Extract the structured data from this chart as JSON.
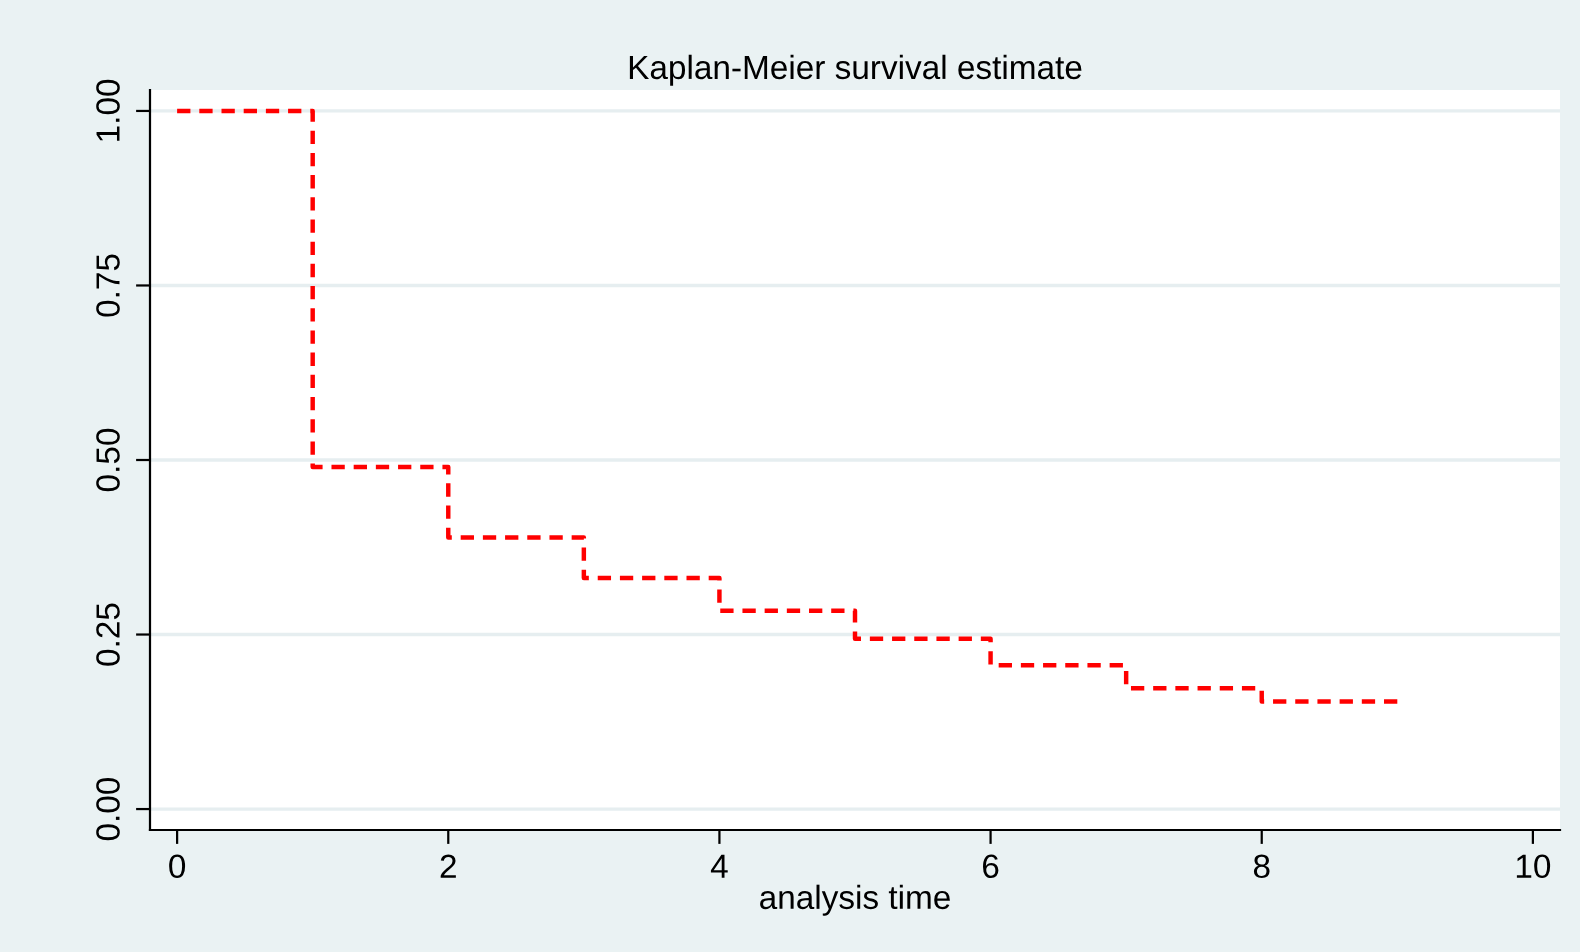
{
  "chart_data": {
    "type": "step",
    "title": "Kaplan-Meier survival estimate",
    "xlabel": "analysis time",
    "x": [
      0,
      1,
      2,
      3,
      4,
      5,
      6,
      7,
      8,
      9
    ],
    "series": [
      {
        "color": "#ff0000",
        "values": [
          1.0,
          0.49,
          0.389,
          0.331,
          0.284,
          0.244,
          0.206,
          0.173,
          0.154,
          0.154
        ]
      }
    ],
    "xlim": [
      -0.2,
      10.2
    ],
    "ylim": [
      -0.03,
      1.03
    ],
    "xticks": [
      0,
      2,
      4,
      6,
      8,
      10
    ],
    "yticks": [
      {
        "value": 0,
        "label": "0.00"
      },
      {
        "value": 0.25,
        "label": "0.25"
      },
      {
        "value": 0.5,
        "label": "0.50"
      },
      {
        "value": 0.75,
        "label": "0.75"
      },
      {
        "value": 1,
        "label": "1.00"
      }
    ],
    "grid": "y",
    "line_style": "dashed",
    "legend": false
  }
}
